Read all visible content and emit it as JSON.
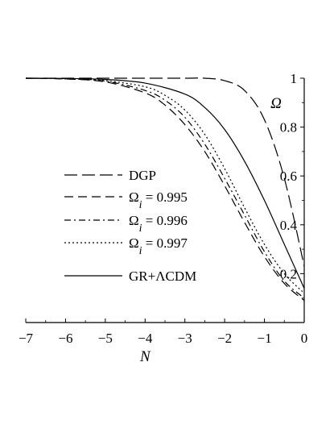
{
  "chart_data": {
    "type": "line",
    "xlabel": "N",
    "ylabel": "Ω",
    "xlim": [
      -7,
      0
    ],
    "ylim": [
      0,
      1
    ],
    "x_ticks": [
      -7,
      -6,
      -5,
      -4,
      -3,
      -2,
      -1,
      0
    ],
    "x_tick_labels": [
      "−7",
      "−6",
      "−5",
      "−4",
      "−3",
      "−2",
      "−1",
      "0"
    ],
    "y_ticks": [
      0.2,
      0.4,
      0.6,
      0.8,
      1
    ],
    "y_tick_labels": [
      "0.2",
      "0.4",
      "0.6",
      "0.8",
      "1"
    ],
    "grid": false,
    "legend_position": "left-center",
    "legend": [
      {
        "label": "DGP",
        "sub": "",
        "value": "",
        "dash": "longdash"
      },
      {
        "label": "Ω",
        "sub": "i",
        "value": " = 0.995",
        "dash": "dash"
      },
      {
        "label": "Ω",
        "sub": "i",
        "value": " = 0.996",
        "dash": "dashdot"
      },
      {
        "label": "Ω",
        "sub": "i",
        "value": " = 0.997",
        "dash": "dot"
      },
      {
        "label": "GR+ΛCDM",
        "sub": "",
        "value": "",
        "dash": "solid"
      }
    ],
    "series": [
      {
        "name": "DGP",
        "dash": "longdash",
        "x": [
          -7,
          -6,
          -5,
          -4,
          -3,
          -2.5,
          -2,
          -1.5,
          -1,
          -0.5,
          0
        ],
        "y": [
          1.0,
          1.0,
          1.0,
          1.0,
          1.0,
          1.0,
          0.99,
          0.95,
          0.83,
          0.59,
          0.23
        ]
      },
      {
        "name": "Ω_i = 0.995",
        "dash": "dash",
        "x": [
          -7,
          -6,
          -5,
          -4,
          -3.5,
          -3,
          -2.5,
          -2,
          -1.5,
          -1,
          -0.5,
          0
        ],
        "y": [
          1.0,
          0.997,
          0.985,
          0.94,
          0.89,
          0.81,
          0.7,
          0.56,
          0.41,
          0.27,
          0.16,
          0.09
        ]
      },
      {
        "name": "Ω_i = 0.996",
        "dash": "dashdot",
        "x": [
          -7,
          -6,
          -5,
          -4,
          -3.5,
          -3,
          -2.5,
          -2,
          -1.5,
          -1,
          -0.5,
          0
        ],
        "y": [
          1.0,
          0.997,
          0.988,
          0.95,
          0.91,
          0.84,
          0.73,
          0.59,
          0.44,
          0.29,
          0.17,
          0.1
        ]
      },
      {
        "name": "Ω_i = 0.997",
        "dash": "dot",
        "x": [
          -7,
          -6,
          -5,
          -4,
          -3.5,
          -3,
          -2.5,
          -2,
          -1.5,
          -1,
          -0.5,
          0
        ],
        "y": [
          1.0,
          0.998,
          0.99,
          0.965,
          0.93,
          0.87,
          0.77,
          0.63,
          0.47,
          0.32,
          0.2,
          0.12
        ]
      },
      {
        "name": "GR+ΛCDM",
        "dash": "solid",
        "x": [
          -7,
          -6,
          -5,
          -4,
          -3,
          -2.5,
          -2,
          -1.5,
          -1,
          -0.5,
          0
        ],
        "y": [
          1.0,
          0.999,
          0.995,
          0.98,
          0.935,
          0.88,
          0.79,
          0.66,
          0.5,
          0.32,
          0.14
        ]
      }
    ]
  }
}
